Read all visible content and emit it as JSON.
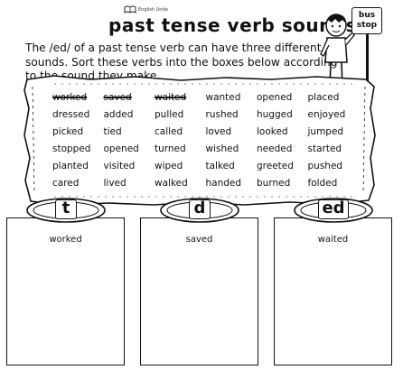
{
  "header": {
    "logo_text": "English Unite",
    "title": "past tense verb sounds"
  },
  "instructions": "The /ed/ of a past tense verb can have three different sounds. Sort these verbs into the boxes below according to the sound they make.",
  "sign": {
    "line1": "bus",
    "line2": "stop"
  },
  "words": [
    {
      "text": "worked",
      "crossed": true
    },
    {
      "text": "saved",
      "crossed": true
    },
    {
      "text": "waited",
      "crossed": true
    },
    {
      "text": "wanted",
      "crossed": false
    },
    {
      "text": "opened",
      "crossed": false
    },
    {
      "text": "placed",
      "crossed": false
    },
    {
      "text": "dressed",
      "crossed": false
    },
    {
      "text": "added",
      "crossed": false
    },
    {
      "text": "pulled",
      "crossed": false
    },
    {
      "text": "rushed",
      "crossed": false
    },
    {
      "text": "hugged",
      "crossed": false
    },
    {
      "text": "enjoyed",
      "crossed": false
    },
    {
      "text": "picked",
      "crossed": false
    },
    {
      "text": "tied",
      "crossed": false
    },
    {
      "text": "called",
      "crossed": false
    },
    {
      "text": "loved",
      "crossed": false
    },
    {
      "text": "looked",
      "crossed": false
    },
    {
      "text": "jumped",
      "crossed": false
    },
    {
      "text": "stopped",
      "crossed": false
    },
    {
      "text": "opened",
      "crossed": false
    },
    {
      "text": "turned",
      "crossed": false
    },
    {
      "text": "wished",
      "crossed": false
    },
    {
      "text": "needed",
      "crossed": false
    },
    {
      "text": "started",
      "crossed": false
    },
    {
      "text": "planted",
      "crossed": false
    },
    {
      "text": "visited",
      "crossed": false
    },
    {
      "text": "wiped",
      "crossed": false
    },
    {
      "text": "talked",
      "crossed": false
    },
    {
      "text": "greeted",
      "crossed": false
    },
    {
      "text": "pushed",
      "crossed": false
    },
    {
      "text": "cared",
      "crossed": false
    },
    {
      "text": "lived",
      "crossed": false
    },
    {
      "text": "walked",
      "crossed": false
    },
    {
      "text": "handed",
      "crossed": false
    },
    {
      "text": "burned",
      "crossed": false
    },
    {
      "text": "folded",
      "crossed": false
    }
  ],
  "boxes": [
    {
      "sound": "t",
      "example": "worked"
    },
    {
      "sound": "d",
      "example": "saved"
    },
    {
      "sound": "ed",
      "example": "waited"
    }
  ],
  "icons": {
    "logo": "book-logo-icon",
    "character": "boy-character-icon",
    "sign": "bus-stop-sign-icon"
  }
}
